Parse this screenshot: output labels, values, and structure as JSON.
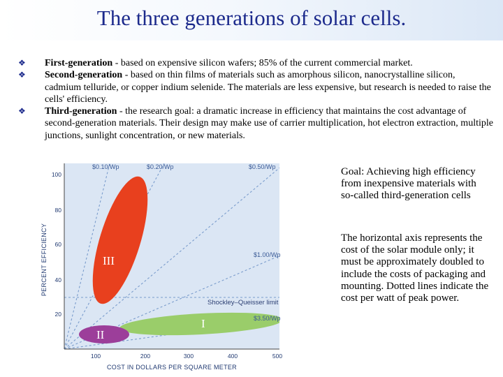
{
  "title": "The three generations of solar cells.",
  "bullets": [
    {
      "term": "First-generation",
      "text": " - based on expensive silicon wafers; 85% of the current commercial market."
    },
    {
      "term": "Second-generation",
      "text": " - based on thin films of materials such as amorphous silicon, nanocrystalline silicon, cadmium telluride, or copper indium selenide. The materials are less expensive, but research is needed to raise the cells' efficiency."
    },
    {
      "term": "Third-generation",
      "text": " - the research goal: a dramatic increase in efficiency that maintains the cost advantage of second-generation materials. Their design may make use of carrier multiplication, hot electron extraction, multiple junctions, sunlight concentration, or new materials."
    }
  ],
  "figure": {
    "xlabel": "COST IN DOLLARS PER SQUARE METER",
    "ylabel": "PERCENT EFFICIENCY",
    "x_ticks": [
      "100",
      "200",
      "300",
      "400",
      "500"
    ],
    "y_ticks": [
      "100",
      "80",
      "60",
      "40",
      "20"
    ],
    "cost_lines": [
      "$0.10/Wp",
      "$0.20/Wp",
      "$0.50/Wp",
      "$1.00/Wp",
      "$3.50/Wp"
    ],
    "limit_label": "Shockley–Queisser limit",
    "regions": {
      "first": "I",
      "second": "II",
      "third": "III"
    },
    "colors": {
      "first": "#9acd6a",
      "second": "#9c3e9a",
      "third": "#e8401e",
      "background": "#dbe6f4",
      "dotted": "#7a9ccc"
    }
  },
  "side": {
    "goal": "Goal: Achieving high efficiency from inexpensive materials with so-called third-generation cells",
    "axis_note": "The horizontal axis represents the cost of the solar module only; it must be approximately doubled to include the costs of packaging and mounting. Dotted lines indicate the cost per watt of peak power."
  }
}
